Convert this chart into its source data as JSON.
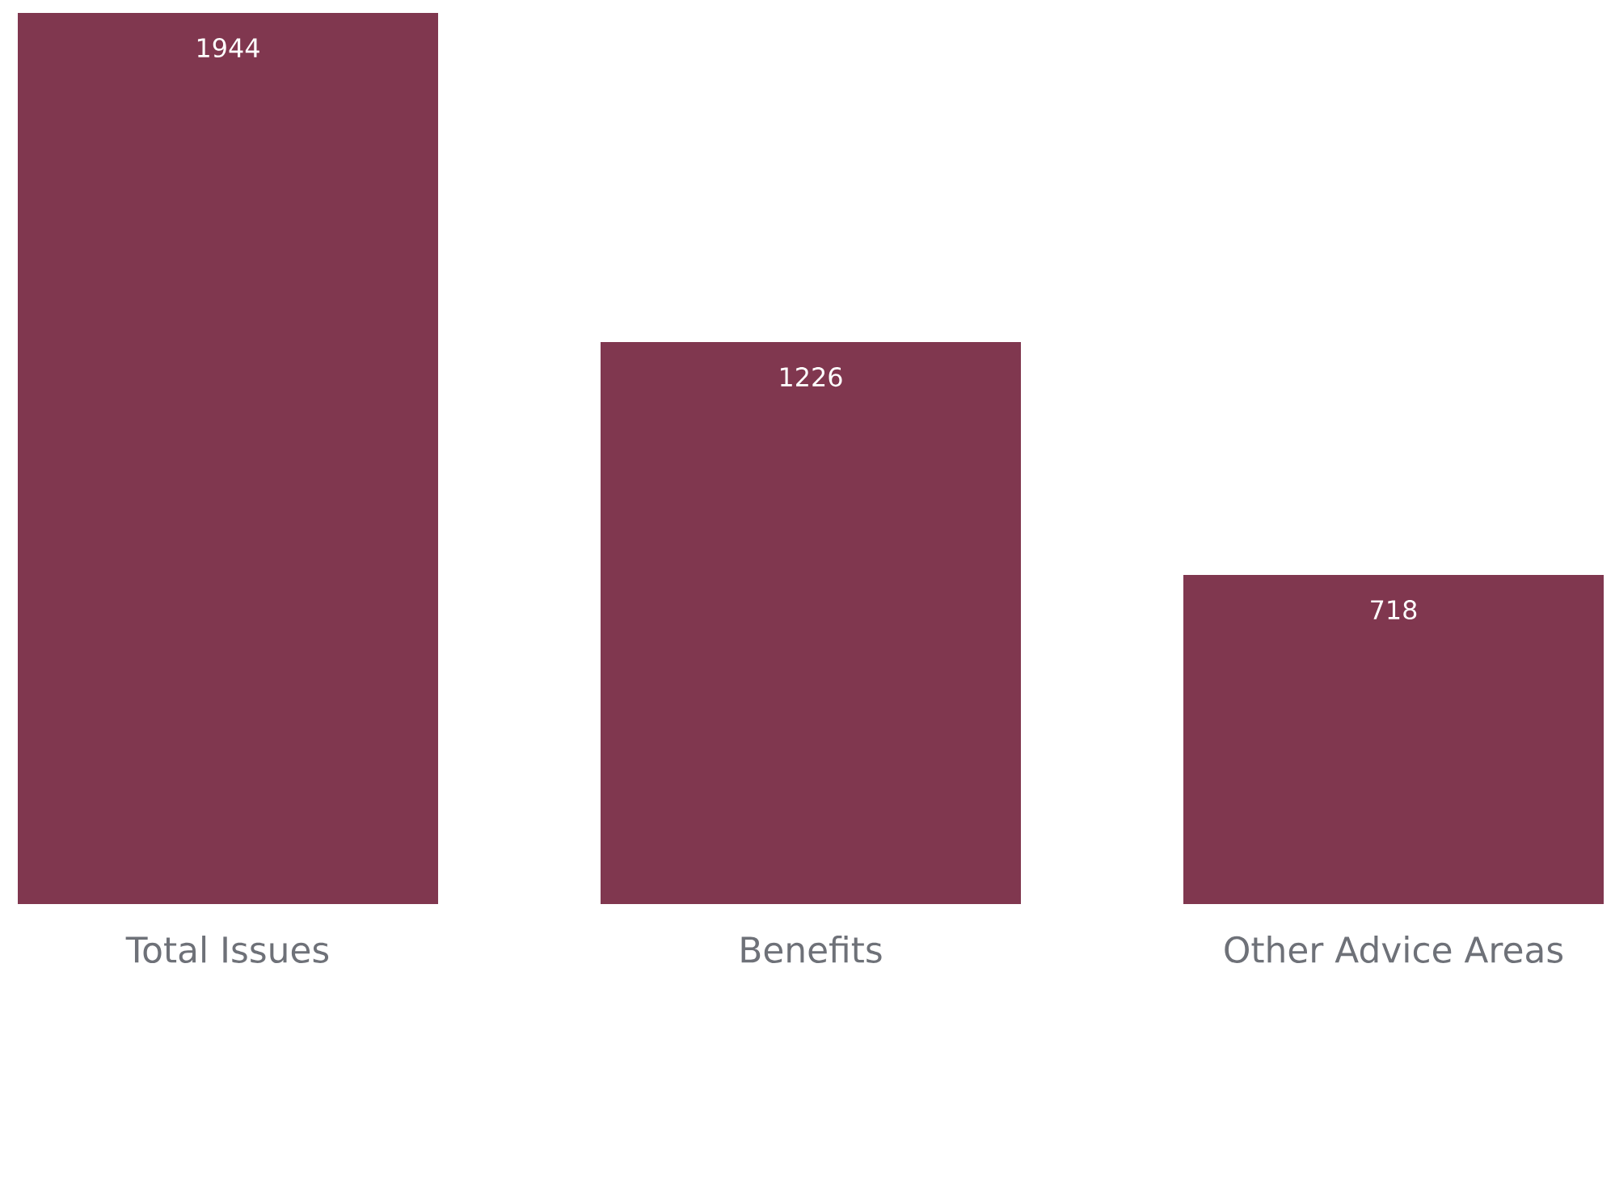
{
  "chart_data": {
    "type": "bar",
    "categories": [
      "Total Issues",
      "Benefits",
      "Other Advice Areas"
    ],
    "values": [
      1944,
      1226,
      718
    ],
    "color": "#80374f",
    "data_labels": true
  }
}
